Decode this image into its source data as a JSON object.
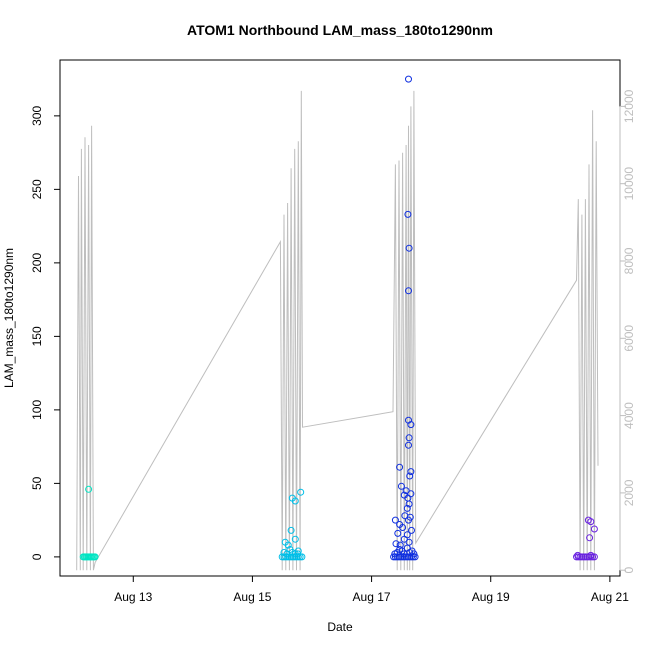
{
  "chart_data": {
    "type": "scatter",
    "title": "ATOM1 Northbound LAM_mass_180to1290nm",
    "xlabel": "Date",
    "ylabel": "LAM_mass_180to1290nm",
    "x_ticks": [
      "Aug 13",
      "Aug 15",
      "Aug 17",
      "Aug 19",
      "Aug 21"
    ],
    "x_tick_days": [
      13,
      15,
      17,
      19,
      21
    ],
    "xlim_days": [
      11.77,
      21.17
    ],
    "y_ticks": [
      0,
      50,
      100,
      150,
      200,
      250,
      300
    ],
    "ylim": [
      -13,
      338
    ],
    "y2_ticks": [
      0,
      2000,
      4000,
      6000,
      8000,
      10000,
      12000
    ],
    "y2lim": [
      -150,
      13200
    ],
    "colors": {
      "axis": "#000000",
      "secondary_axis": "#bebebe",
      "background_line": "#bebebe"
    },
    "grid": false,
    "legend": "none",
    "series": [
      {
        "color": "#00e5c3",
        "points": [
          [
            12.16,
            0
          ],
          [
            12.18,
            0
          ],
          [
            12.2,
            0
          ],
          [
            12.22,
            0
          ],
          [
            12.24,
            0
          ],
          [
            12.26,
            0
          ],
          [
            12.28,
            0
          ],
          [
            12.3,
            0
          ],
          [
            12.32,
            0
          ],
          [
            12.34,
            0
          ],
          [
            12.36,
            0
          ],
          [
            12.25,
            46
          ]
        ]
      },
      {
        "color": "#00bfe8",
        "points": [
          [
            15.5,
            0
          ],
          [
            15.53,
            0
          ],
          [
            15.56,
            0
          ],
          [
            15.59,
            0
          ],
          [
            15.62,
            0
          ],
          [
            15.65,
            0
          ],
          [
            15.68,
            0
          ],
          [
            15.71,
            0
          ],
          [
            15.74,
            0
          ],
          [
            15.77,
            0
          ],
          [
            15.8,
            0
          ],
          [
            15.83,
            0
          ],
          [
            15.53,
            3
          ],
          [
            15.58,
            2
          ],
          [
            15.63,
            5
          ],
          [
            15.67,
            3
          ],
          [
            15.72,
            2
          ],
          [
            15.77,
            4
          ],
          [
            15.55,
            10
          ],
          [
            15.6,
            8
          ],
          [
            15.65,
            18
          ],
          [
            15.72,
            12
          ],
          [
            15.76,
            2
          ],
          [
            15.67,
            40
          ],
          [
            15.72,
            38
          ],
          [
            15.81,
            44
          ]
        ]
      },
      {
        "color": "#1030e0",
        "points": [
          [
            17.37,
            0
          ],
          [
            17.4,
            0
          ],
          [
            17.43,
            0
          ],
          [
            17.46,
            0
          ],
          [
            17.49,
            0
          ],
          [
            17.52,
            0
          ],
          [
            17.55,
            0
          ],
          [
            17.58,
            0
          ],
          [
            17.61,
            0
          ],
          [
            17.64,
            0
          ],
          [
            17.67,
            0
          ],
          [
            17.7,
            0
          ],
          [
            17.73,
            0
          ],
          [
            17.39,
            2
          ],
          [
            17.43,
            3
          ],
          [
            17.47,
            5
          ],
          [
            17.51,
            4
          ],
          [
            17.55,
            2
          ],
          [
            17.6,
            6
          ],
          [
            17.64,
            3
          ],
          [
            17.68,
            4
          ],
          [
            17.71,
            2
          ],
          [
            17.41,
            9
          ],
          [
            17.48,
            8
          ],
          [
            17.55,
            12
          ],
          [
            17.63,
            10
          ],
          [
            17.44,
            16
          ],
          [
            17.52,
            20
          ],
          [
            17.6,
            15
          ],
          [
            17.67,
            18
          ],
          [
            17.4,
            25
          ],
          [
            17.47,
            22
          ],
          [
            17.56,
            28
          ],
          [
            17.62,
            25
          ],
          [
            17.65,
            27
          ],
          [
            17.6,
            33
          ],
          [
            17.63,
            36
          ],
          [
            17.55,
            42
          ],
          [
            17.58,
            45
          ],
          [
            17.61,
            40
          ],
          [
            17.66,
            43
          ],
          [
            17.5,
            48
          ],
          [
            17.47,
            61
          ],
          [
            17.64,
            55
          ],
          [
            17.66,
            58
          ],
          [
            17.62,
            76
          ],
          [
            17.63,
            81
          ],
          [
            17.66,
            90
          ],
          [
            17.62,
            93
          ],
          [
            17.62,
            181
          ],
          [
            17.63,
            210
          ],
          [
            17.61,
            233
          ],
          [
            17.62,
            325
          ]
        ]
      },
      {
        "color": "#6a22e0",
        "points": [
          [
            20.44,
            0
          ],
          [
            20.47,
            0
          ],
          [
            20.5,
            0
          ],
          [
            20.53,
            0
          ],
          [
            20.56,
            0
          ],
          [
            20.59,
            0
          ],
          [
            20.62,
            0
          ],
          [
            20.65,
            0
          ],
          [
            20.68,
            0
          ],
          [
            20.71,
            0
          ],
          [
            20.74,
            0
          ],
          [
            20.46,
            1
          ],
          [
            20.68,
            1
          ],
          [
            20.64,
            25
          ],
          [
            20.68,
            24
          ],
          [
            20.66,
            13
          ],
          [
            20.74,
            19
          ]
        ]
      }
    ],
    "secondary_line": {
      "color": "#bebebe",
      "points": [
        [
          12.05,
          0
        ],
        [
          12.08,
          10200
        ],
        [
          12.11,
          0
        ],
        [
          12.13,
          10900
        ],
        [
          12.16,
          0
        ],
        [
          12.19,
          11200
        ],
        [
          12.22,
          0
        ],
        [
          12.25,
          11000
        ],
        [
          12.28,
          0
        ],
        [
          12.3,
          11500
        ],
        [
          12.33,
          0
        ],
        [
          12.36,
          200
        ],
        [
          15.47,
          8500
        ],
        [
          15.5,
          0
        ],
        [
          15.53,
          9200
        ],
        [
          15.56,
          0
        ],
        [
          15.59,
          9500
        ],
        [
          15.62,
          0
        ],
        [
          15.65,
          10400
        ],
        [
          15.68,
          0
        ],
        [
          15.71,
          10900
        ],
        [
          15.74,
          0
        ],
        [
          15.77,
          11100
        ],
        [
          15.8,
          0
        ],
        [
          15.82,
          12400
        ],
        [
          15.84,
          3700
        ],
        [
          17.36,
          4100
        ],
        [
          17.4,
          10500
        ],
        [
          17.43,
          0
        ],
        [
          17.46,
          10600
        ],
        [
          17.49,
          0
        ],
        [
          17.52,
          10800
        ],
        [
          17.55,
          0
        ],
        [
          17.58,
          11000
        ],
        [
          17.6,
          0
        ],
        [
          17.62,
          11500
        ],
        [
          17.64,
          0
        ],
        [
          17.66,
          12000
        ],
        [
          17.69,
          0
        ],
        [
          17.71,
          12400
        ],
        [
          17.74,
          700
        ],
        [
          20.44,
          7500
        ],
        [
          20.47,
          9600
        ],
        [
          20.5,
          0
        ],
        [
          20.53,
          9200
        ],
        [
          20.56,
          0
        ],
        [
          20.59,
          9600
        ],
        [
          20.62,
          0
        ],
        [
          20.65,
          10500
        ],
        [
          20.68,
          0
        ],
        [
          20.71,
          11900
        ],
        [
          20.74,
          0
        ],
        [
          20.77,
          11100
        ],
        [
          20.8,
          2700
        ]
      ]
    }
  }
}
